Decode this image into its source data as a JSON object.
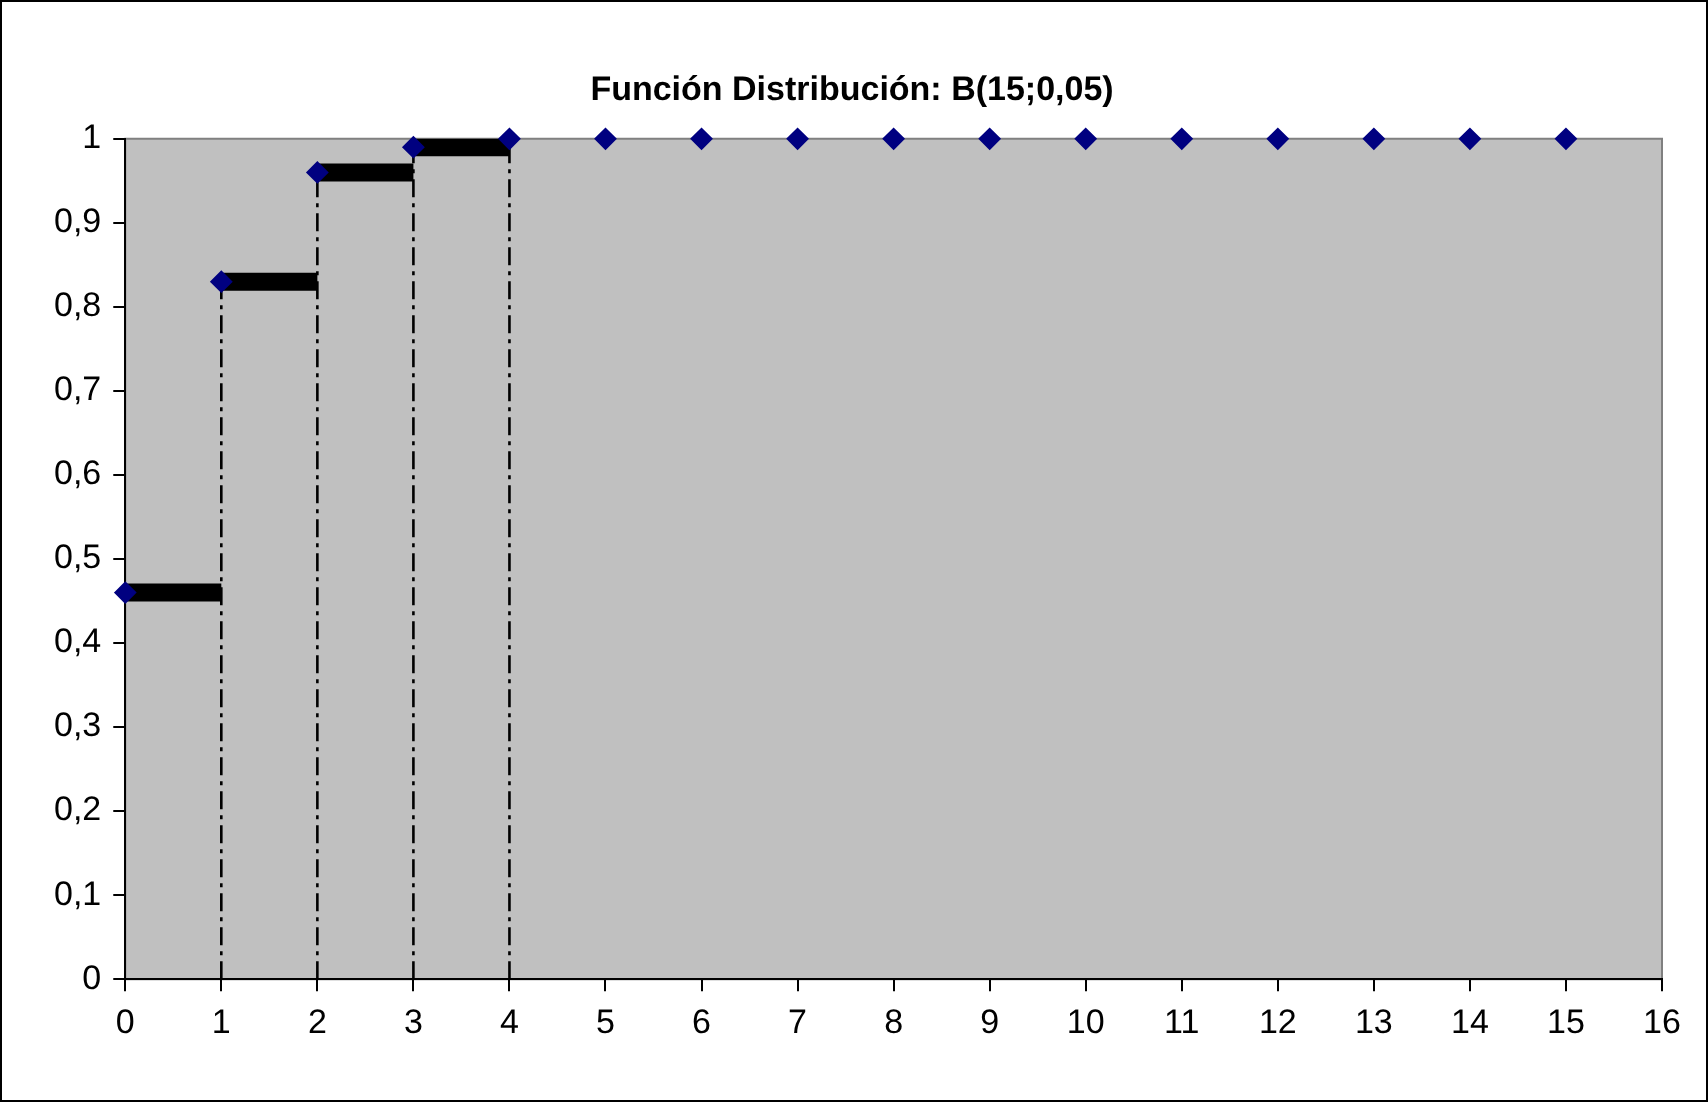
{
  "chart_data": {
    "type": "scatter",
    "title": "Función Distribución: B(15;0,05)",
    "x": [
      0,
      1,
      2,
      3,
      4,
      5,
      6,
      7,
      8,
      9,
      10,
      11,
      12,
      13,
      14,
      15
    ],
    "marker": "diamond",
    "legend": false,
    "grid": false,
    "xlim": [
      0,
      16
    ],
    "xticks": [
      0,
      1,
      2,
      3,
      4,
      5,
      6,
      7,
      8,
      9,
      10,
      11,
      12,
      13,
      14,
      15,
      16
    ],
    "ylim": [
      0,
      1
    ],
    "yticks": [
      {
        "value": 0,
        "label": "0"
      },
      {
        "value": 0.1,
        "label": "0,1"
      },
      {
        "value": 0.2,
        "label": "0,2"
      },
      {
        "value": 0.3,
        "label": "0,3"
      },
      {
        "value": 0.4,
        "label": "0,4"
      },
      {
        "value": 0.5,
        "label": "0,5"
      },
      {
        "value": 0.6,
        "label": "0,6"
      },
      {
        "value": 0.7,
        "label": "0,7"
      },
      {
        "value": 0.8,
        "label": "0,8"
      },
      {
        "value": 0.9,
        "label": "0,9"
      },
      {
        "value": 1,
        "label": "1"
      }
    ],
    "series": [
      {
        "color": "#000080",
        "values": [
          0.46,
          0.83,
          0.96,
          0.99,
          1,
          1,
          1,
          1,
          1,
          1,
          1,
          1,
          1,
          1,
          1,
          1
        ]
      },
      {
        "type": "line",
        "color": "#000000",
        "marker": "none",
        "line_style": "solid",
        "x": [
          0,
          1
        ],
        "values": [
          0.46,
          0.46
        ]
      },
      {
        "type": "line",
        "color": "#000000",
        "marker": "none",
        "line_style": "solid",
        "x": [
          1,
          2
        ],
        "values": [
          0.83,
          0.83
        ]
      },
      {
        "type": "line",
        "color": "#000000",
        "marker": "none",
        "line_style": "solid",
        "x": [
          2,
          3
        ],
        "values": [
          0.96,
          0.96
        ]
      },
      {
        "type": "line",
        "color": "#000000",
        "marker": "none",
        "line_style": "solid",
        "x": [
          3,
          4
        ],
        "values": [
          0.99,
          0.99
        ]
      },
      {
        "type": "line",
        "color": "#000000",
        "marker": "none",
        "line_style": "dashed",
        "x": [
          1,
          1
        ],
        "values": [
          0,
          0.83
        ]
      },
      {
        "type": "line",
        "color": "#000000",
        "marker": "none",
        "line_style": "dashed",
        "x": [
          2,
          2
        ],
        "values": [
          0,
          0.96
        ]
      },
      {
        "type": "line",
        "color": "#000000",
        "marker": "none",
        "line_style": "dashed",
        "x": [
          3,
          3
        ],
        "values": [
          0,
          0.99
        ]
      },
      {
        "type": "line",
        "color": "#000000",
        "marker": "none",
        "line_style": "dashed",
        "x": [
          4,
          4
        ],
        "values": [
          0,
          1
        ]
      }
    ]
  }
}
